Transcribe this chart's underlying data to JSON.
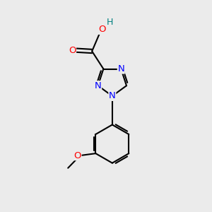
{
  "background_color": "#ebebeb",
  "bond_color": "#000000",
  "N_color": "#0000ff",
  "O_color": "#ff0000",
  "H_color": "#008080",
  "line_width": 1.5,
  "font_size": 9.5,
  "figsize": [
    3.0,
    3.0
  ],
  "dpi": 100,
  "xlim": [
    0,
    10
  ],
  "ylim": [
    0,
    10
  ]
}
